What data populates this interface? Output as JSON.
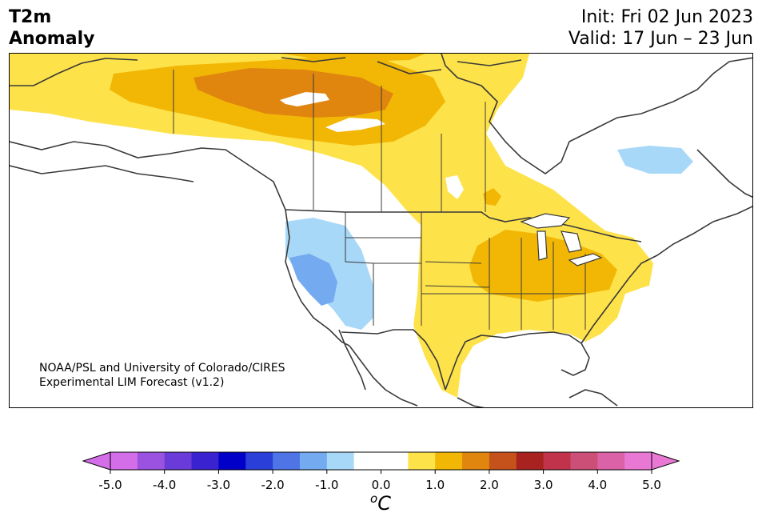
{
  "header": {
    "title_line1": "T2m",
    "title_line2": "Anomaly",
    "init": "Init: Fri 02 Jun 2023",
    "valid": "Valid: 17 Jun – 23 Jun"
  },
  "credit": {
    "line1": "NOAA/PSL and University of Colorado/CIRES",
    "line2": "Experimental LIM Forecast (v1.2)"
  },
  "colorbar": {
    "ticks": [
      "-5.0",
      "-4.0",
      "-3.0",
      "-2.0",
      "-1.0",
      "0.0",
      "1.0",
      "2.0",
      "3.0",
      "4.0",
      "5.0"
    ],
    "unit_super": "o",
    "unit_main": "C",
    "colors": [
      "#d46ee8",
      "#9b52e0",
      "#6a3bd9",
      "#3b22d0",
      "#0000c8",
      "#2a3ed8",
      "#4f74e6",
      "#74aaf0",
      "#a8d8f8",
      "#ffffff",
      "#ffffff",
      "#fde24a",
      "#f2b705",
      "#e0860f",
      "#c4521a",
      "#a8221f",
      "#c0334a",
      "#cc4f78",
      "#dc62a8",
      "#e878d4"
    ],
    "min_color": "#d46ee8",
    "max_color": "#e878d4"
  },
  "palette": {
    "light_yellow": "#fde24a",
    "yellow_orange": "#f2b705",
    "orange": "#e0860f",
    "light_blue": "#a8d8f8",
    "blue": "#74aaf0"
  }
}
